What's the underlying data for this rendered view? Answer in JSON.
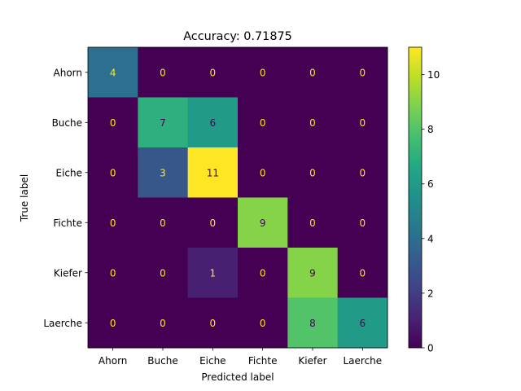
{
  "chart_data": {
    "type": "heatmap",
    "title": "Accuracy: 0.71875",
    "xlabel": "Predicted label",
    "ylabel": "True label",
    "x_categories": [
      "Ahorn",
      "Buche",
      "Eiche",
      "Fichte",
      "Kiefer",
      "Laerche"
    ],
    "y_categories": [
      "Ahorn",
      "Buche",
      "Eiche",
      "Fichte",
      "Kiefer",
      "Laerche"
    ],
    "values": [
      [
        4,
        0,
        0,
        0,
        0,
        0
      ],
      [
        0,
        7,
        6,
        0,
        0,
        0
      ],
      [
        0,
        3,
        11,
        0,
        0,
        0
      ],
      [
        0,
        0,
        0,
        9,
        0,
        0
      ],
      [
        0,
        0,
        1,
        0,
        9,
        0
      ],
      [
        0,
        0,
        0,
        0,
        8,
        6
      ]
    ],
    "colorbar": {
      "range": [
        0,
        11
      ],
      "ticks": [
        0,
        2,
        4,
        6,
        8,
        10
      ]
    },
    "colormap": "viridis",
    "text_colors": {
      "dark_cell": "#fde725",
      "light_cell": "#440154"
    }
  }
}
